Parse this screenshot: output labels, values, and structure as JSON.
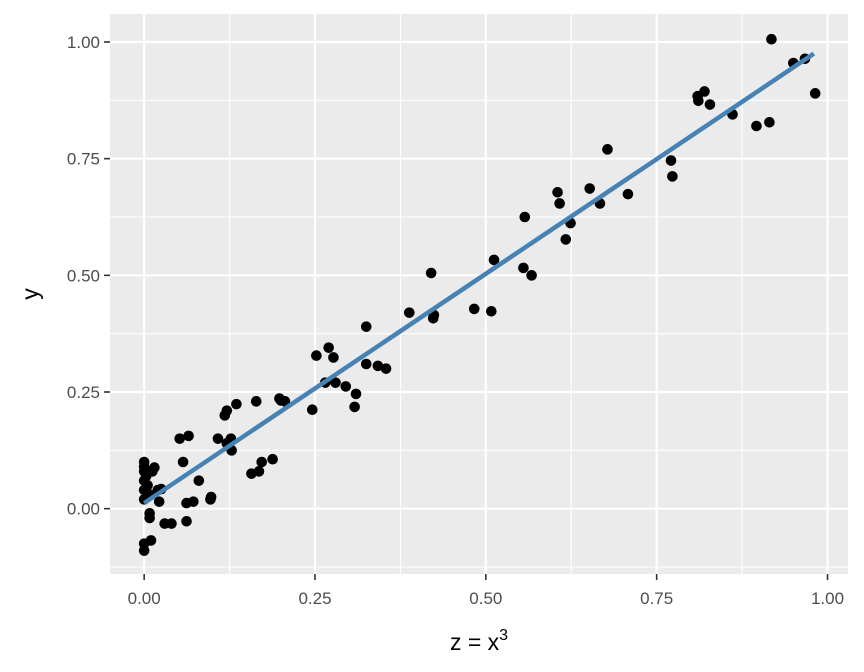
{
  "chart_data": {
    "type": "scatter",
    "title": "",
    "xlabel": "z = x",
    "xlabel_superscript": "3",
    "ylabel": "y",
    "xlim": [
      -0.05,
      1.03
    ],
    "ylim": [
      -0.14,
      1.06
    ],
    "x_ticks": [
      0,
      0.25,
      0.5,
      0.75,
      1.0
    ],
    "x_tick_labels": [
      "0.00",
      "0.25",
      "0.50",
      "0.75",
      "1.00"
    ],
    "y_ticks": [
      0,
      0.25,
      0.5,
      0.75,
      1.0
    ],
    "y_tick_labels": [
      "0.00",
      "0.25",
      "0.50",
      "0.75",
      "1.00"
    ],
    "grid": true,
    "legend": "none",
    "colors": {
      "panel": "#ebebeb",
      "grid": "#ffffff",
      "points": "#000000",
      "fit_line": "#4682b4"
    },
    "points": [
      [
        0.0,
        0.1
      ],
      [
        0.0,
        0.09
      ],
      [
        0.0,
        0.08
      ],
      [
        0.0,
        0.06
      ],
      [
        0.0,
        0.04
      ],
      [
        0.0,
        0.02
      ],
      [
        0.0,
        -0.075
      ],
      [
        0.0,
        -0.09
      ],
      [
        0.003,
        0.07
      ],
      [
        0.005,
        0.05
      ],
      [
        0.008,
        0.03
      ],
      [
        0.008,
        -0.01
      ],
      [
        0.008,
        -0.02
      ],
      [
        0.01,
        -0.068
      ],
      [
        0.012,
        0.08
      ],
      [
        0.015,
        0.088
      ],
      [
        0.02,
        0.04
      ],
      [
        0.022,
        0.015
      ],
      [
        0.025,
        0.042
      ],
      [
        0.03,
        -0.032
      ],
      [
        0.04,
        -0.032
      ],
      [
        0.052,
        0.15
      ],
      [
        0.057,
        0.1
      ],
      [
        0.062,
        0.012
      ],
      [
        0.062,
        -0.027
      ],
      [
        0.065,
        0.156
      ],
      [
        0.072,
        0.015
      ],
      [
        0.08,
        0.06
      ],
      [
        0.097,
        0.02
      ],
      [
        0.098,
        0.025
      ],
      [
        0.108,
        0.15
      ],
      [
        0.118,
        0.2
      ],
      [
        0.121,
        0.21
      ],
      [
        0.121,
        0.14
      ],
      [
        0.127,
        0.15
      ],
      [
        0.128,
        0.125
      ],
      [
        0.135,
        0.224
      ],
      [
        0.157,
        0.075
      ],
      [
        0.164,
        0.23
      ],
      [
        0.168,
        0.08
      ],
      [
        0.172,
        0.1
      ],
      [
        0.188,
        0.106
      ],
      [
        0.198,
        0.236
      ],
      [
        0.2,
        0.232
      ],
      [
        0.206,
        0.23
      ],
      [
        0.246,
        0.212
      ],
      [
        0.252,
        0.328
      ],
      [
        0.265,
        0.27
      ],
      [
        0.27,
        0.345
      ],
      [
        0.277,
        0.324
      ],
      [
        0.28,
        0.27
      ],
      [
        0.295,
        0.262
      ],
      [
        0.308,
        0.218
      ],
      [
        0.31,
        0.246
      ],
      [
        0.325,
        0.39
      ],
      [
        0.325,
        0.31
      ],
      [
        0.342,
        0.306
      ],
      [
        0.354,
        0.3
      ],
      [
        0.388,
        0.42
      ],
      [
        0.42,
        0.505
      ],
      [
        0.423,
        0.408
      ],
      [
        0.424,
        0.415
      ],
      [
        0.483,
        0.428
      ],
      [
        0.508,
        0.423
      ],
      [
        0.512,
        0.533
      ],
      [
        0.555,
        0.516
      ],
      [
        0.557,
        0.625
      ],
      [
        0.567,
        0.5
      ],
      [
        0.605,
        0.678
      ],
      [
        0.608,
        0.654
      ],
      [
        0.617,
        0.577
      ],
      [
        0.624,
        0.612
      ],
      [
        0.652,
        0.686
      ],
      [
        0.667,
        0.654
      ],
      [
        0.678,
        0.77
      ],
      [
        0.708,
        0.674
      ],
      [
        0.771,
        0.746
      ],
      [
        0.773,
        0.712
      ],
      [
        0.81,
        0.884
      ],
      [
        0.811,
        0.874
      ],
      [
        0.82,
        0.894
      ],
      [
        0.828,
        0.866
      ],
      [
        0.861,
        0.845
      ],
      [
        0.896,
        0.82
      ],
      [
        0.915,
        0.828
      ],
      [
        0.918,
        1.006
      ],
      [
        0.95,
        0.955
      ],
      [
        0.967,
        0.964
      ],
      [
        0.982,
        0.89
      ]
    ],
    "fit_line": {
      "x": [
        0.0,
        0.98
      ],
      "y": [
        0.012,
        0.975
      ]
    }
  }
}
